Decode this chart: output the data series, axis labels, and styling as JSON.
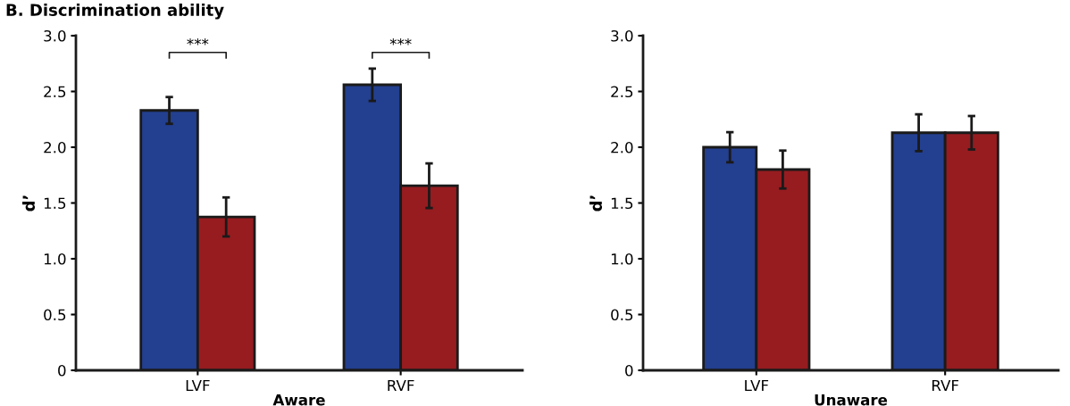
{
  "chart_data": [
    {
      "type": "bar",
      "title": "B. Discrimination ability",
      "xlabel": "Aware",
      "ylabel": "d’",
      "categories": [
        "LVF",
        "RVF"
      ],
      "series": [
        {
          "color": "#233f8f",
          "values": [
            2.33,
            2.56
          ],
          "errors": [
            0.12,
            0.145
          ]
        },
        {
          "color": "#961c20",
          "values": [
            1.375,
            1.655
          ],
          "errors": [
            0.175,
            0.2
          ]
        }
      ],
      "ylim": [
        0,
        3.0
      ],
      "yticks": [
        {
          "value": 0,
          "label": "0"
        },
        {
          "value": 0.5,
          "label": "0.5"
        },
        {
          "value": 1.0,
          "label": "1.0"
        },
        {
          "value": 1.5,
          "label": "1.5"
        },
        {
          "value": 2.0,
          "label": "2.0"
        },
        {
          "value": 2.5,
          "label": "2.5"
        },
        {
          "value": 3.0,
          "label": "3.0"
        }
      ],
      "annotations": [
        "***",
        "***"
      ],
      "grid": false,
      "legend": false
    },
    {
      "type": "bar",
      "xlabel": "Unaware",
      "ylabel": "d’",
      "categories": [
        "LVF",
        "RVF"
      ],
      "series": [
        {
          "color": "#233f8f",
          "values": [
            2.0,
            2.13
          ],
          "errors": [
            0.135,
            0.165
          ]
        },
        {
          "color": "#961c20",
          "values": [
            1.8,
            2.13
          ],
          "errors": [
            0.17,
            0.15
          ]
        }
      ],
      "ylim": [
        0,
        3.0
      ],
      "yticks": [
        {
          "value": 0,
          "label": "0"
        },
        {
          "value": 0.5,
          "label": "0.5"
        },
        {
          "value": 1.0,
          "label": "1.0"
        },
        {
          "value": 1.5,
          "label": "1.5"
        },
        {
          "value": 2.0,
          "label": "2.0"
        },
        {
          "value": 2.5,
          "label": "2.5"
        },
        {
          "value": 3.0,
          "label": "3.0"
        }
      ],
      "grid": false,
      "legend": false
    }
  ]
}
